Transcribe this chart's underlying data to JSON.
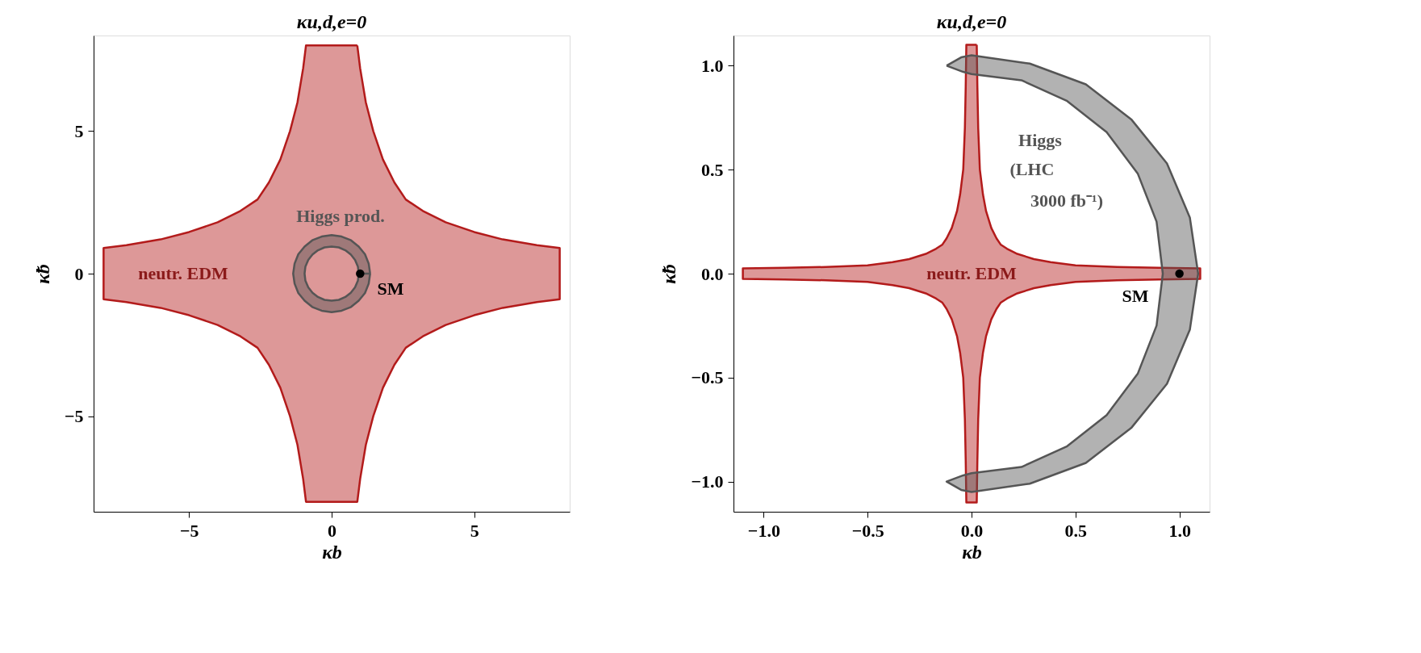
{
  "chart_data": [
    {
      "type": "area",
      "title": "κu,d,e=0",
      "xlabel": "κb",
      "ylabel": "κ̃b",
      "xlim": [
        -8.35,
        8.35
      ],
      "ylim": [
        -8.35,
        8.35
      ],
      "xticks": [
        -5,
        0,
        5
      ],
      "yticks": [
        -5,
        0,
        5
      ],
      "grid": false,
      "series": [
        {
          "color": "#b31b1b",
          "x": [
            0.9,
            1.0,
            1.2,
            1.46,
            1.8,
            2.2,
            2.6,
            3.2,
            4,
            5,
            6,
            7.2,
            8,
            8,
            7.2,
            6,
            5,
            4,
            3.2,
            2.6,
            2.2,
            1.8,
            1.46,
            1.2,
            1,
            0.9,
            -0.9,
            -1,
            -1.2,
            -1.46,
            -1.8,
            -2.2,
            -2.6,
            -3.2,
            -4,
            -5,
            -6,
            -7.2,
            -8,
            -8,
            -7.2,
            -6,
            -5,
            -4,
            -3.2,
            -2.6,
            -2.2,
            -1.8,
            -1.46,
            -1.2,
            -1,
            -0.9,
            0.9
          ],
          "values": [
            8,
            7.2,
            6,
            5,
            4,
            3.2,
            2.6,
            2.2,
            1.8,
            1.46,
            1.2,
            1,
            0.9,
            -0.9,
            -1,
            -1.2,
            -1.46,
            -1.8,
            -2.2,
            -2.6,
            -3.2,
            -4,
            -5,
            -6,
            -7.2,
            -8,
            -8,
            -7.2,
            -6,
            -5,
            -4,
            -3.2,
            -2.6,
            -2.2,
            -1.8,
            -1.46,
            -1.2,
            -1,
            -0.9,
            0.9,
            1,
            1.2,
            1.46,
            1.8,
            2.2,
            2.6,
            3.2,
            4,
            5,
            6,
            7.2,
            8,
            8
          ]
        },
        {
          "color": "#555555",
          "x": [
            1.35,
            1.3,
            1.17,
            0.95,
            0.68,
            0.35,
            0,
            -0.35,
            -0.68,
            -0.95,
            -1.17,
            -1.3,
            -1.35,
            -1.3,
            -1.17,
            -0.95,
            -0.68,
            -0.35,
            0,
            0.35,
            0.68,
            0.95,
            1.17,
            1.3,
            1.35,
            0.95,
            0.92,
            0.82,
            0.67,
            0.48,
            0.25,
            0,
            -0.25,
            -0.48,
            -0.67,
            -0.82,
            -0.92,
            -0.95,
            -0.92,
            -0.82,
            -0.67,
            -0.48,
            -0.25,
            0,
            0.25,
            0.48,
            0.67,
            0.82,
            0.92,
            0.95,
            1.35
          ],
          "values": [
            0,
            0.35,
            0.68,
            0.95,
            1.17,
            1.3,
            1.35,
            1.3,
            1.17,
            0.95,
            0.68,
            0.35,
            0,
            -0.35,
            -0.68,
            -0.95,
            -1.17,
            -1.3,
            -1.35,
            -1.3,
            -1.17,
            -0.95,
            -0.68,
            -0.35,
            0,
            0,
            -0.25,
            -0.48,
            -0.67,
            -0.82,
            -0.92,
            -0.95,
            -0.92,
            -0.82,
            -0.67,
            -0.48,
            -0.25,
            0,
            0.25,
            0.48,
            0.67,
            0.82,
            0.92,
            0.95,
            0.92,
            0.82,
            0.67,
            0.48,
            0.25,
            0,
            0
          ]
        },
        {
          "type": "scatter",
          "color": "#000000",
          "marker": "circle",
          "x": [
            1
          ],
          "values": [
            0
          ]
        }
      ],
      "annotations": [
        "neutr. EDM",
        "Higgs prod.",
        "SM"
      ]
    },
    {
      "type": "area",
      "title": "κu,d,e=0",
      "xlabel": "κb",
      "ylabel": "κ̃b",
      "xlim": [
        -1.145,
        1.145
      ],
      "ylim": [
        -1.145,
        1.145
      ],
      "xticks": [
        {
          "value": -1,
          "label": "−1.0"
        },
        {
          "value": -0.5,
          "label": "−0.5"
        },
        {
          "value": 0,
          "label": "0.0"
        },
        {
          "value": 0.5,
          "label": "0.5"
        },
        {
          "value": 1,
          "label": "1.0"
        }
      ],
      "yticks": [
        {
          "value": -1,
          "label": "−1.0"
        },
        {
          "value": -0.5,
          "label": "−0.5"
        },
        {
          "value": 0,
          "label": "0.0"
        },
        {
          "value": 0.5,
          "label": "0.5"
        },
        {
          "value": 1,
          "label": "1.0"
        }
      ],
      "grid": false,
      "series": [
        {
          "color": "#b31b1b",
          "x": [
            0.025,
            0.028,
            0.032,
            0.04,
            0.055,
            0.07,
            0.095,
            0.12,
            0.14,
            0.17,
            0.22,
            0.3,
            0.38,
            0.5,
            0.7,
            0.9,
            1.1,
            1.1,
            0.9,
            0.7,
            0.5,
            0.38,
            0.3,
            0.22,
            0.17,
            0.14,
            0.12,
            0.095,
            0.07,
            0.055,
            0.04,
            0.032,
            0.028,
            0.025,
            -0.025,
            -0.028,
            -0.032,
            -0.04,
            -0.055,
            -0.07,
            -0.095,
            -0.12,
            -0.14,
            -0.17,
            -0.22,
            -0.3,
            -0.38,
            -0.5,
            -0.7,
            -0.9,
            -1.1,
            -1.1,
            -0.9,
            -0.7,
            -0.5,
            -0.38,
            -0.3,
            -0.22,
            -0.17,
            -0.14,
            -0.12,
            -0.095,
            -0.07,
            -0.055,
            -0.04,
            -0.032,
            -0.028,
            -0.025,
            0.025
          ],
          "values": [
            1.1,
            0.9,
            0.7,
            0.5,
            0.38,
            0.3,
            0.22,
            0.17,
            0.14,
            0.12,
            0.095,
            0.07,
            0.055,
            0.04,
            0.032,
            0.028,
            0.025,
            -0.025,
            -0.028,
            -0.032,
            -0.04,
            -0.055,
            -0.07,
            -0.095,
            -0.12,
            -0.14,
            -0.17,
            -0.22,
            -0.3,
            -0.38,
            -0.5,
            -0.7,
            -0.9,
            -1.1,
            -1.1,
            -0.9,
            -0.7,
            -0.5,
            -0.38,
            -0.3,
            -0.22,
            -0.17,
            -0.14,
            -0.12,
            -0.095,
            -0.07,
            -0.055,
            -0.04,
            -0.032,
            -0.028,
            -0.025,
            0.025,
            0.028,
            0.032,
            0.04,
            0.055,
            0.07,
            0.095,
            0.12,
            0.14,
            0.17,
            0.22,
            0.3,
            0.38,
            0.5,
            0.7,
            0.9,
            1.1,
            1.1
          ]
        },
        {
          "color": "#555555",
          "x": [
            -0.12,
            -0.05,
            0,
            0.28,
            0.55,
            0.77,
            0.94,
            1.05,
            1.09,
            1.05,
            0.94,
            0.77,
            0.55,
            0.28,
            0,
            -0.05,
            -0.12,
            -0.04,
            0,
            0.24,
            0.46,
            0.65,
            0.8,
            0.89,
            0.92,
            0.89,
            0.8,
            0.65,
            0.46,
            0.24,
            0,
            -0.04,
            -0.12
          ],
          "values": [
            1.0,
            1.04,
            1.05,
            1.01,
            0.91,
            0.74,
            0.53,
            0.27,
            0,
            -0.27,
            -0.53,
            -0.74,
            -0.91,
            -1.01,
            -1.05,
            -1.04,
            -1.0,
            -0.97,
            -0.96,
            -0.93,
            -0.83,
            -0.68,
            -0.48,
            -0.25,
            0,
            0.25,
            0.48,
            0.68,
            0.83,
            0.93,
            0.96,
            0.97,
            1.0
          ]
        },
        {
          "type": "scatter",
          "color": "#000000",
          "marker": "circle",
          "x": [
            1
          ],
          "values": [
            0
          ]
        }
      ],
      "annotations": [
        "neutr. EDM",
        "Higgs",
        "(LHC",
        "3000 fb⁻¹)",
        "SM"
      ]
    }
  ]
}
